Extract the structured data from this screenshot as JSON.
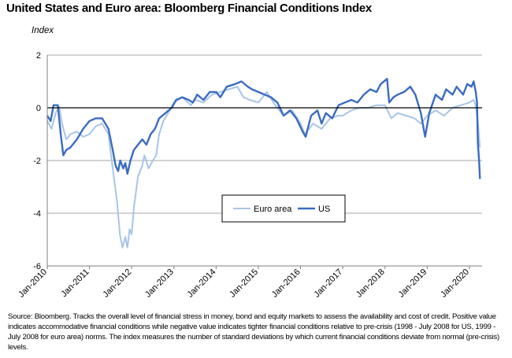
{
  "header": {
    "title": "United States and Euro area: Bloomberg Financial Conditions Index",
    "y_unit": "Index"
  },
  "footer": {
    "source": "Source: Bloomberg. Tracks the overall level of financial stress in money, bond and equity markets to assess the availability and cost of credit. Positive value indicates accommodative financial conditions while negative value indicates tighter financial conditions relative to pre-crisis (1998 - July 2008 for US, 1999 - July 2008 for euro area) norms. The index measures the number of standard deviations by which current financial conditions deviate from normal (pre-crisis) levels."
  },
  "chart_data": {
    "type": "line",
    "title": "United States and Euro area: Bloomberg Financial Conditions Index",
    "ylabel": "Index",
    "xlabel": "",
    "ylim": [
      -6,
      2
    ],
    "yticks": [
      2,
      0,
      -2,
      -4,
      -6
    ],
    "xlim": [
      2010.0,
      2020.3
    ],
    "xticks": [
      "Jan-2010",
      "Jan-2011",
      "Jan-2012",
      "Jan-2013",
      "Jan-2014",
      "Jan-2015",
      "Jan-2016",
      "Jan-2017",
      "Jan-2018",
      "Jan-2019",
      "Jan-2020"
    ],
    "grid": "horizontal",
    "legend_position": "center",
    "series": [
      {
        "name": "Euro area",
        "color": "#a9c4e8",
        "points": [
          [
            2010.0,
            -0.5
          ],
          [
            2010.1,
            -0.8
          ],
          [
            2010.2,
            -0.2
          ],
          [
            2010.28,
            0.05
          ],
          [
            2010.35,
            -0.6
          ],
          [
            2010.45,
            -1.2
          ],
          [
            2010.55,
            -1.0
          ],
          [
            2010.7,
            -0.9
          ],
          [
            2010.85,
            -1.1
          ],
          [
            2011.0,
            -1.0
          ],
          [
            2011.15,
            -0.7
          ],
          [
            2011.3,
            -0.6
          ],
          [
            2011.45,
            -1.0
          ],
          [
            2011.55,
            -2.3
          ],
          [
            2011.65,
            -3.5
          ],
          [
            2011.72,
            -4.8
          ],
          [
            2011.78,
            -5.3
          ],
          [
            2011.85,
            -4.9
          ],
          [
            2011.9,
            -5.3
          ],
          [
            2011.95,
            -4.6
          ],
          [
            2012.0,
            -4.8
          ],
          [
            2012.05,
            -3.8
          ],
          [
            2012.15,
            -2.6
          ],
          [
            2012.25,
            -2.2
          ],
          [
            2012.3,
            -1.8
          ],
          [
            2012.4,
            -2.3
          ],
          [
            2012.5,
            -2.0
          ],
          [
            2012.58,
            -1.8
          ],
          [
            2012.65,
            -1.0
          ],
          [
            2012.75,
            -0.5
          ],
          [
            2012.9,
            -0.1
          ],
          [
            2013.0,
            0.2
          ],
          [
            2013.2,
            0.4
          ],
          [
            2013.4,
            0.1
          ],
          [
            2013.5,
            0.3
          ],
          [
            2013.7,
            0.2
          ],
          [
            2013.9,
            0.5
          ],
          [
            2014.1,
            0.6
          ],
          [
            2014.3,
            0.7
          ],
          [
            2014.5,
            0.8
          ],
          [
            2014.65,
            0.4
          ],
          [
            2014.8,
            0.3
          ],
          [
            2015.0,
            0.2
          ],
          [
            2015.2,
            0.6
          ],
          [
            2015.4,
            0.1
          ],
          [
            2015.6,
            -0.3
          ],
          [
            2015.8,
            -0.1
          ],
          [
            2016.0,
            -0.6
          ],
          [
            2016.1,
            -1.0
          ],
          [
            2016.3,
            -0.6
          ],
          [
            2016.5,
            -0.8
          ],
          [
            2016.7,
            -0.4
          ],
          [
            2016.9,
            -0.3
          ],
          [
            2017.0,
            -0.3
          ],
          [
            2017.2,
            -0.1
          ],
          [
            2017.4,
            0.0
          ],
          [
            2017.6,
            0.0
          ],
          [
            2017.8,
            0.1
          ],
          [
            2018.0,
            0.1
          ],
          [
            2018.15,
            -0.4
          ],
          [
            2018.3,
            -0.2
          ],
          [
            2018.5,
            -0.3
          ],
          [
            2018.7,
            -0.4
          ],
          [
            2018.85,
            -0.6
          ],
          [
            2019.0,
            -0.3
          ],
          [
            2019.2,
            -0.1
          ],
          [
            2019.4,
            -0.3
          ],
          [
            2019.6,
            0.0
          ],
          [
            2019.8,
            0.1
          ],
          [
            2020.0,
            0.2
          ],
          [
            2020.1,
            0.3
          ],
          [
            2020.15,
            0.1
          ],
          [
            2020.2,
            -0.5
          ],
          [
            2020.25,
            -1.5
          ]
        ]
      },
      {
        "name": "US",
        "color": "#3a6cc2",
        "points": [
          [
            2010.0,
            -0.3
          ],
          [
            2010.08,
            -0.5
          ],
          [
            2010.15,
            0.1
          ],
          [
            2010.25,
            0.1
          ],
          [
            2010.32,
            -1.0
          ],
          [
            2010.38,
            -1.8
          ],
          [
            2010.45,
            -1.6
          ],
          [
            2010.55,
            -1.5
          ],
          [
            2010.7,
            -1.2
          ],
          [
            2010.85,
            -0.8
          ],
          [
            2011.0,
            -0.5
          ],
          [
            2011.15,
            -0.4
          ],
          [
            2011.3,
            -0.4
          ],
          [
            2011.45,
            -0.8
          ],
          [
            2011.55,
            -1.6
          ],
          [
            2011.62,
            -2.2
          ],
          [
            2011.68,
            -2.4
          ],
          [
            2011.73,
            -2.0
          ],
          [
            2011.8,
            -2.3
          ],
          [
            2011.85,
            -2.1
          ],
          [
            2011.9,
            -2.5
          ],
          [
            2011.97,
            -2.0
          ],
          [
            2012.05,
            -1.6
          ],
          [
            2012.15,
            -1.4
          ],
          [
            2012.25,
            -1.2
          ],
          [
            2012.35,
            -1.4
          ],
          [
            2012.45,
            -1.0
          ],
          [
            2012.55,
            -0.8
          ],
          [
            2012.65,
            -0.4
          ],
          [
            2012.8,
            -0.2
          ],
          [
            2012.95,
            0.0
          ],
          [
            2013.05,
            0.3
          ],
          [
            2013.2,
            0.4
          ],
          [
            2013.35,
            0.3
          ],
          [
            2013.45,
            0.2
          ],
          [
            2013.55,
            0.5
          ],
          [
            2013.7,
            0.3
          ],
          [
            2013.85,
            0.6
          ],
          [
            2014.0,
            0.6
          ],
          [
            2014.1,
            0.4
          ],
          [
            2014.25,
            0.8
          ],
          [
            2014.45,
            0.9
          ],
          [
            2014.6,
            1.0
          ],
          [
            2014.75,
            0.8
          ],
          [
            2014.85,
            0.7
          ],
          [
            2015.0,
            0.6
          ],
          [
            2015.15,
            0.5
          ],
          [
            2015.3,
            0.4
          ],
          [
            2015.45,
            0.2
          ],
          [
            2015.6,
            -0.3
          ],
          [
            2015.75,
            -0.1
          ],
          [
            2015.9,
            -0.4
          ],
          [
            2016.05,
            -0.9
          ],
          [
            2016.12,
            -1.1
          ],
          [
            2016.25,
            -0.3
          ],
          [
            2016.4,
            -0.1
          ],
          [
            2016.5,
            -0.6
          ],
          [
            2016.6,
            -0.2
          ],
          [
            2016.75,
            -0.4
          ],
          [
            2016.9,
            0.1
          ],
          [
            2017.05,
            0.2
          ],
          [
            2017.2,
            0.3
          ],
          [
            2017.35,
            0.2
          ],
          [
            2017.5,
            0.5
          ],
          [
            2017.65,
            0.7
          ],
          [
            2017.8,
            0.6
          ],
          [
            2017.9,
            0.9
          ],
          [
            2018.05,
            1.1
          ],
          [
            2018.1,
            0.2
          ],
          [
            2018.2,
            0.4
          ],
          [
            2018.3,
            0.5
          ],
          [
            2018.45,
            0.6
          ],
          [
            2018.6,
            0.8
          ],
          [
            2018.72,
            0.5
          ],
          [
            2018.85,
            -0.2
          ],
          [
            2018.95,
            -1.1
          ],
          [
            2019.05,
            -0.2
          ],
          [
            2019.2,
            0.5
          ],
          [
            2019.35,
            0.3
          ],
          [
            2019.45,
            0.7
          ],
          [
            2019.6,
            0.5
          ],
          [
            2019.7,
            0.8
          ],
          [
            2019.85,
            0.5
          ],
          [
            2019.95,
            0.9
          ],
          [
            2020.05,
            0.8
          ],
          [
            2020.1,
            1.0
          ],
          [
            2020.15,
            0.6
          ],
          [
            2020.18,
            0.2
          ],
          [
            2020.2,
            -1.3
          ],
          [
            2020.23,
            -2.0
          ],
          [
            2020.25,
            -2.7
          ]
        ]
      }
    ]
  }
}
